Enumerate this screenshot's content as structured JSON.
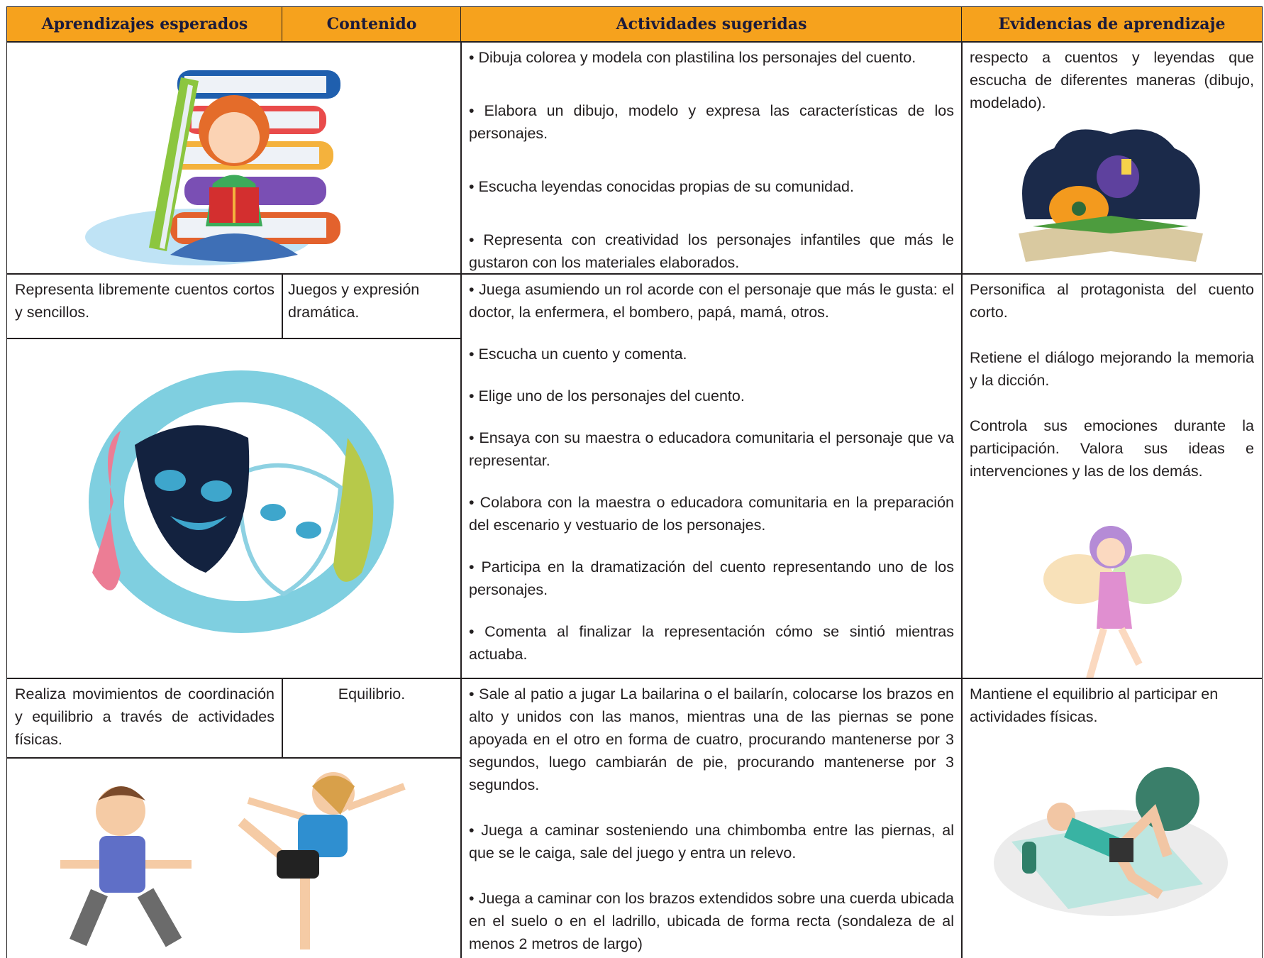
{
  "table": {
    "header": [
      "Aprendizajes esperados",
      "Contenido",
      "Actividades sugeridas",
      "Evidencias de aprendizaje"
    ],
    "rows": [
      {
        "activities": [
          "• Dibuja colorea y modela con plastilina los personajes del cuento.",
          "• Elabora un dibujo, modelo y expresa las características de los personajes.",
          "• Escucha leyendas conocidas propias de su comunidad.",
          "• Representa con creatividad los personajes infantiles que más le gustaron con los materiales elaborados."
        ],
        "evidence": [
          "respecto a cuentos y leyendas que escucha de diferentes maneras (dibujo, modelado)."
        ]
      },
      {
        "aprendizaje": "Representa libremente cuentos cortos y sencillos.",
        "contenido": "Juegos y expresión dramática.",
        "activities": [
          "• Juega asumiendo un rol acorde con el personaje que más le gusta: el doctor, la enfermera, el bombero, papá, mamá, otros.",
          "• Escucha un cuento y comenta.",
          "• Elige uno de los personajes del cuento.",
          "• Ensaya con su maestra o educadora comunitaria el personaje que va representar.",
          "• Colabora con la maestra o educadora comunitaria en la preparación del escenario y vestuario de los personajes.",
          "• Participa en la dramatización del cuento representando uno de los personajes.",
          "• Comenta al finalizar la representación cómo se sintió mientras actuaba."
        ],
        "evidence": [
          "Personifica al protagonista del cuento corto.",
          "Retiene el diálogo mejorando la memoria y la dicción.",
          "Controla sus emociones durante la participación. Valora sus ideas e intervenciones y las de los demás."
        ]
      },
      {
        "aprendizaje": "Realiza movimientos de coordinación y equilibrio a través de actividades físicas.",
        "contenido": "Equilibrio.",
        "activities": [
          "• Sale al patio a jugar La bailarina o el bailarín, colocarse los brazos en alto y unidos con las manos, mientras una de las piernas se pone apoyada en el otro en forma de cuatro, procurando mantenerse por 3 segundos, luego cambiarán de pie, procurando mantenerse por 3 segundos.",
          "• Juega a caminar sosteniendo una chimbomba entre las piernas, al que se le caiga, sale del juego y entra un relevo.",
          "• Juega a caminar con los brazos extendidos sobre una cuerda ubicada en el suelo o en el ladrillo, ubicada de forma recta (sondaleza de al menos 2 metros de largo)"
        ],
        "evidence": [
          "Mantiene el equilibrio al participar en actividades físicas."
        ]
      }
    ]
  }
}
